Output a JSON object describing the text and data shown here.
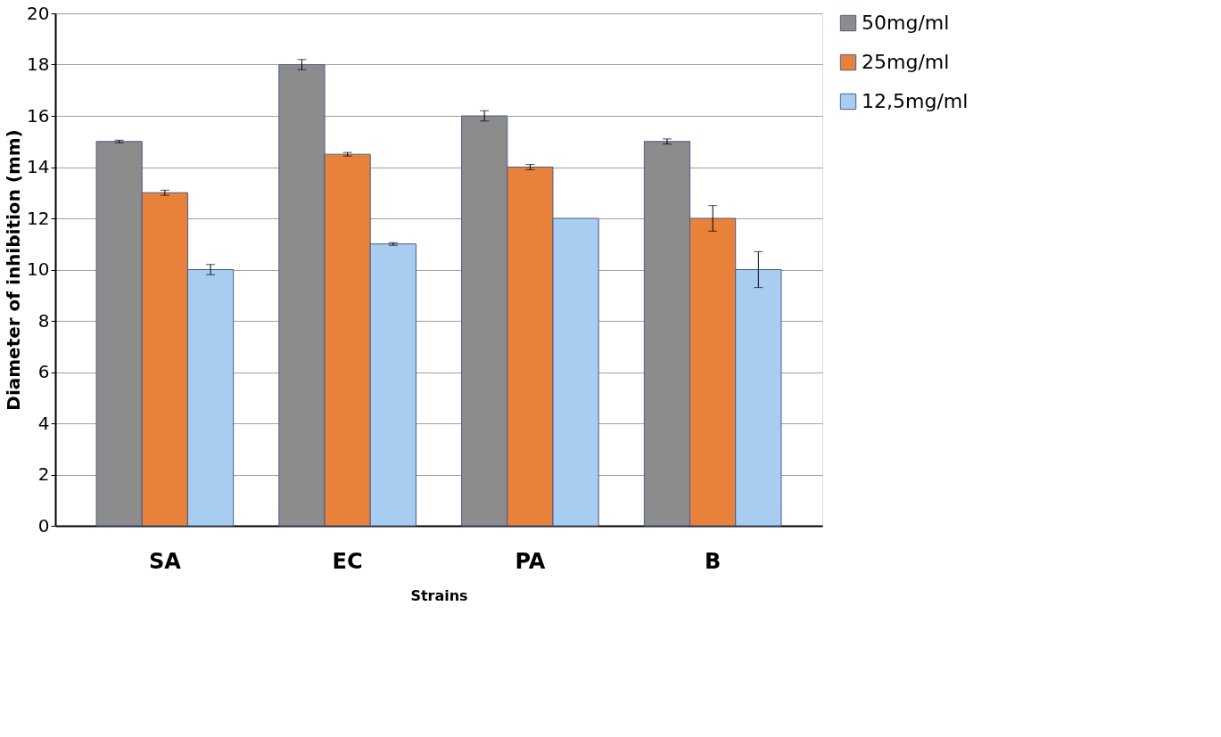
{
  "chart_data": {
    "type": "bar",
    "xlabel": "Strains",
    "ylabel": "Diameter of inhibition (mm)",
    "categories": [
      "SA",
      "EC",
      "PA",
      "B"
    ],
    "series": [
      {
        "name": "50mg/ml",
        "color": "#8c8c8c",
        "values": [
          15,
          18,
          16,
          15
        ],
        "errors": [
          0.05,
          0.2,
          0.2,
          0.1
        ]
      },
      {
        "name": "25mg/ml",
        "color": "#e8823a",
        "values": [
          13,
          14.5,
          14,
          12
        ],
        "errors": [
          0.1,
          0.07,
          0.1,
          0.5
        ]
      },
      {
        "name": "12,5mg/ml",
        "color": "#a9cdf0",
        "values": [
          10,
          11,
          12,
          10
        ],
        "errors": [
          0.2,
          0.05,
          null,
          0.7
        ]
      }
    ],
    "ylim": [
      0,
      20
    ],
    "yticks": [
      0,
      2,
      4,
      6,
      8,
      10,
      12,
      14,
      16,
      18,
      20
    ],
    "grid": "y",
    "legend": "right"
  }
}
